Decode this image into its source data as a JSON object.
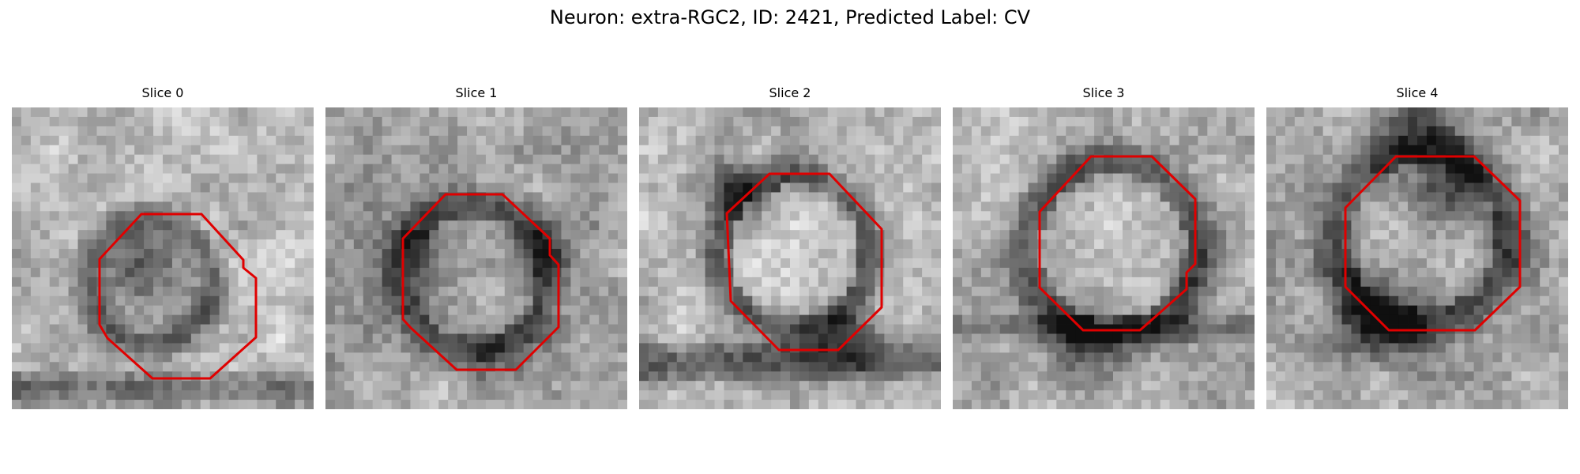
{
  "figure": {
    "title": "Neuron: extra-RGC2, ID: 2421, Predicted Label: CV",
    "contour_color": "#e00000"
  },
  "panels": [
    {
      "title": "Slice 0"
    },
    {
      "title": "Slice 1"
    },
    {
      "title": "Slice 2"
    },
    {
      "title": "Slice 3"
    },
    {
      "title": "Slice 4"
    }
  ]
}
